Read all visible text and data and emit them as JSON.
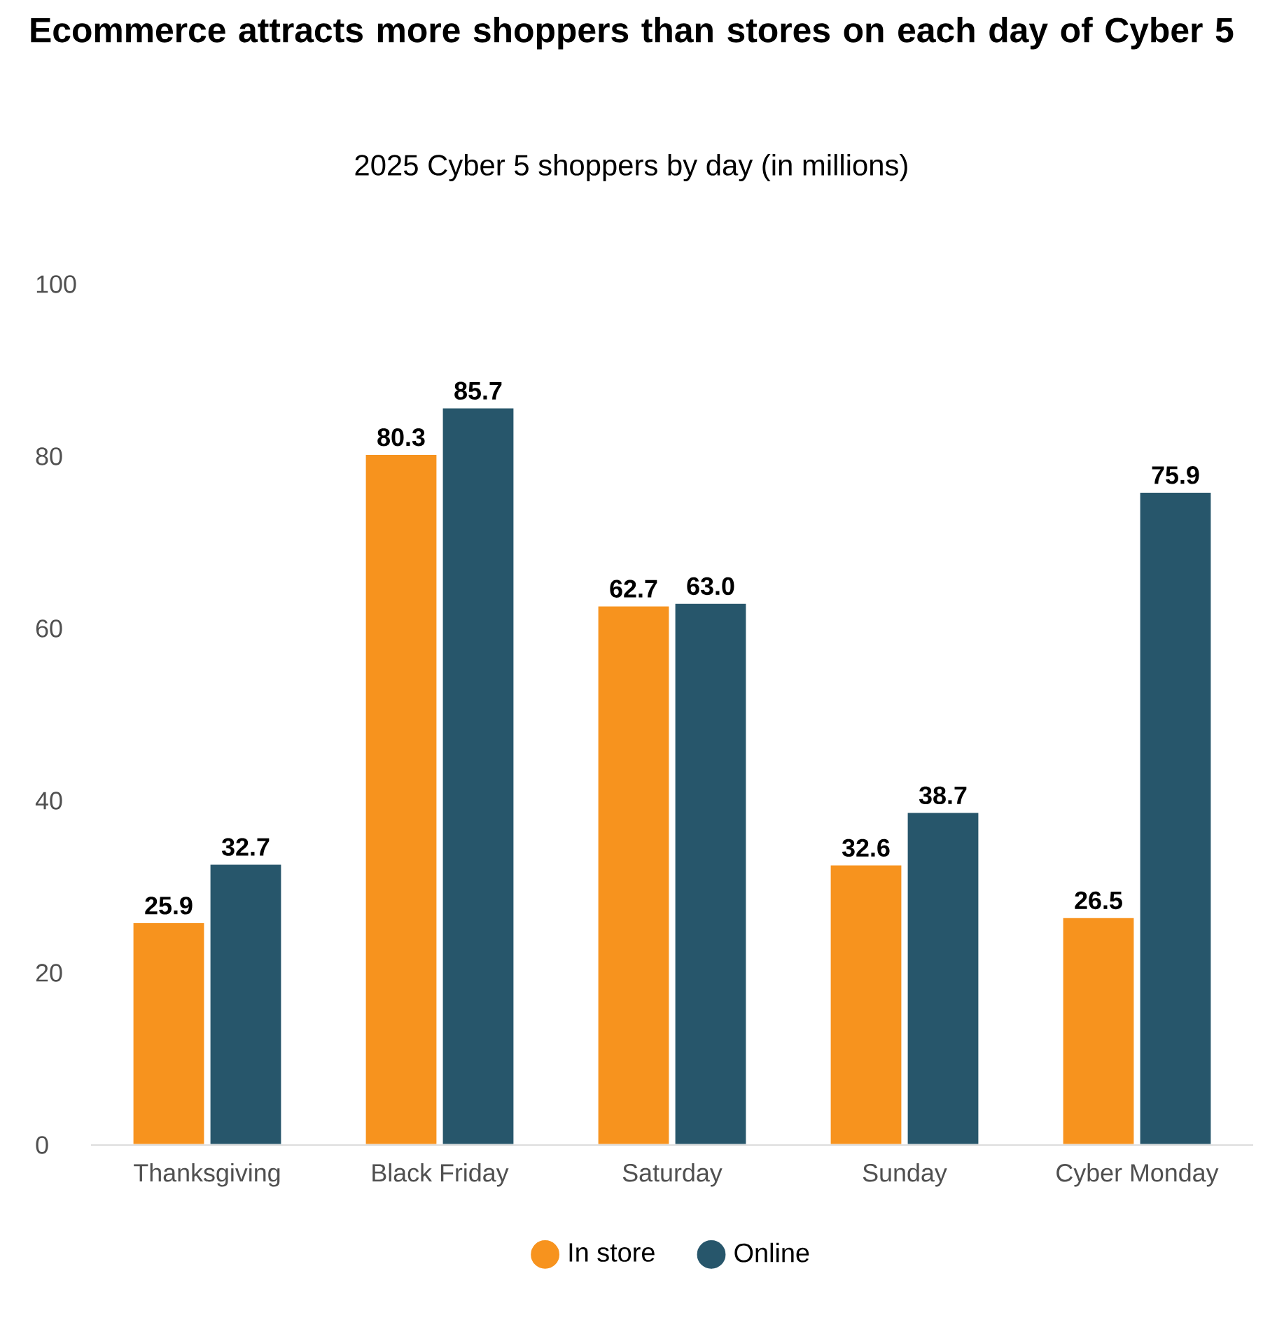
{
  "chart_data": {
    "type": "bar",
    "title": "Ecommerce attracts more shoppers than stores on each day of Cyber 5",
    "subtitle": "2025 Cyber 5 shoppers by day (in millions)",
    "categories": [
      "Thanksgiving",
      "Black Friday",
      "Saturday",
      "Sunday",
      "Cyber Monday"
    ],
    "series": [
      {
        "name": "In store",
        "color": "#f7931e",
        "values": [
          25.9,
          80.3,
          62.7,
          32.6,
          26.5
        ],
        "value_labels": [
          "25.9",
          "80.3",
          "62.7",
          "32.6",
          "26.5"
        ]
      },
      {
        "name": "Online",
        "color": "#27566b",
        "values": [
          32.7,
          85.7,
          63.0,
          38.7,
          75.9
        ],
        "value_labels": [
          "32.7",
          "85.7",
          "63.0",
          "38.7",
          "75.9"
        ]
      }
    ],
    "ylim": [
      0,
      100
    ],
    "yticks": [
      0,
      20,
      40,
      60,
      80,
      100
    ],
    "legend": "bottom"
  }
}
